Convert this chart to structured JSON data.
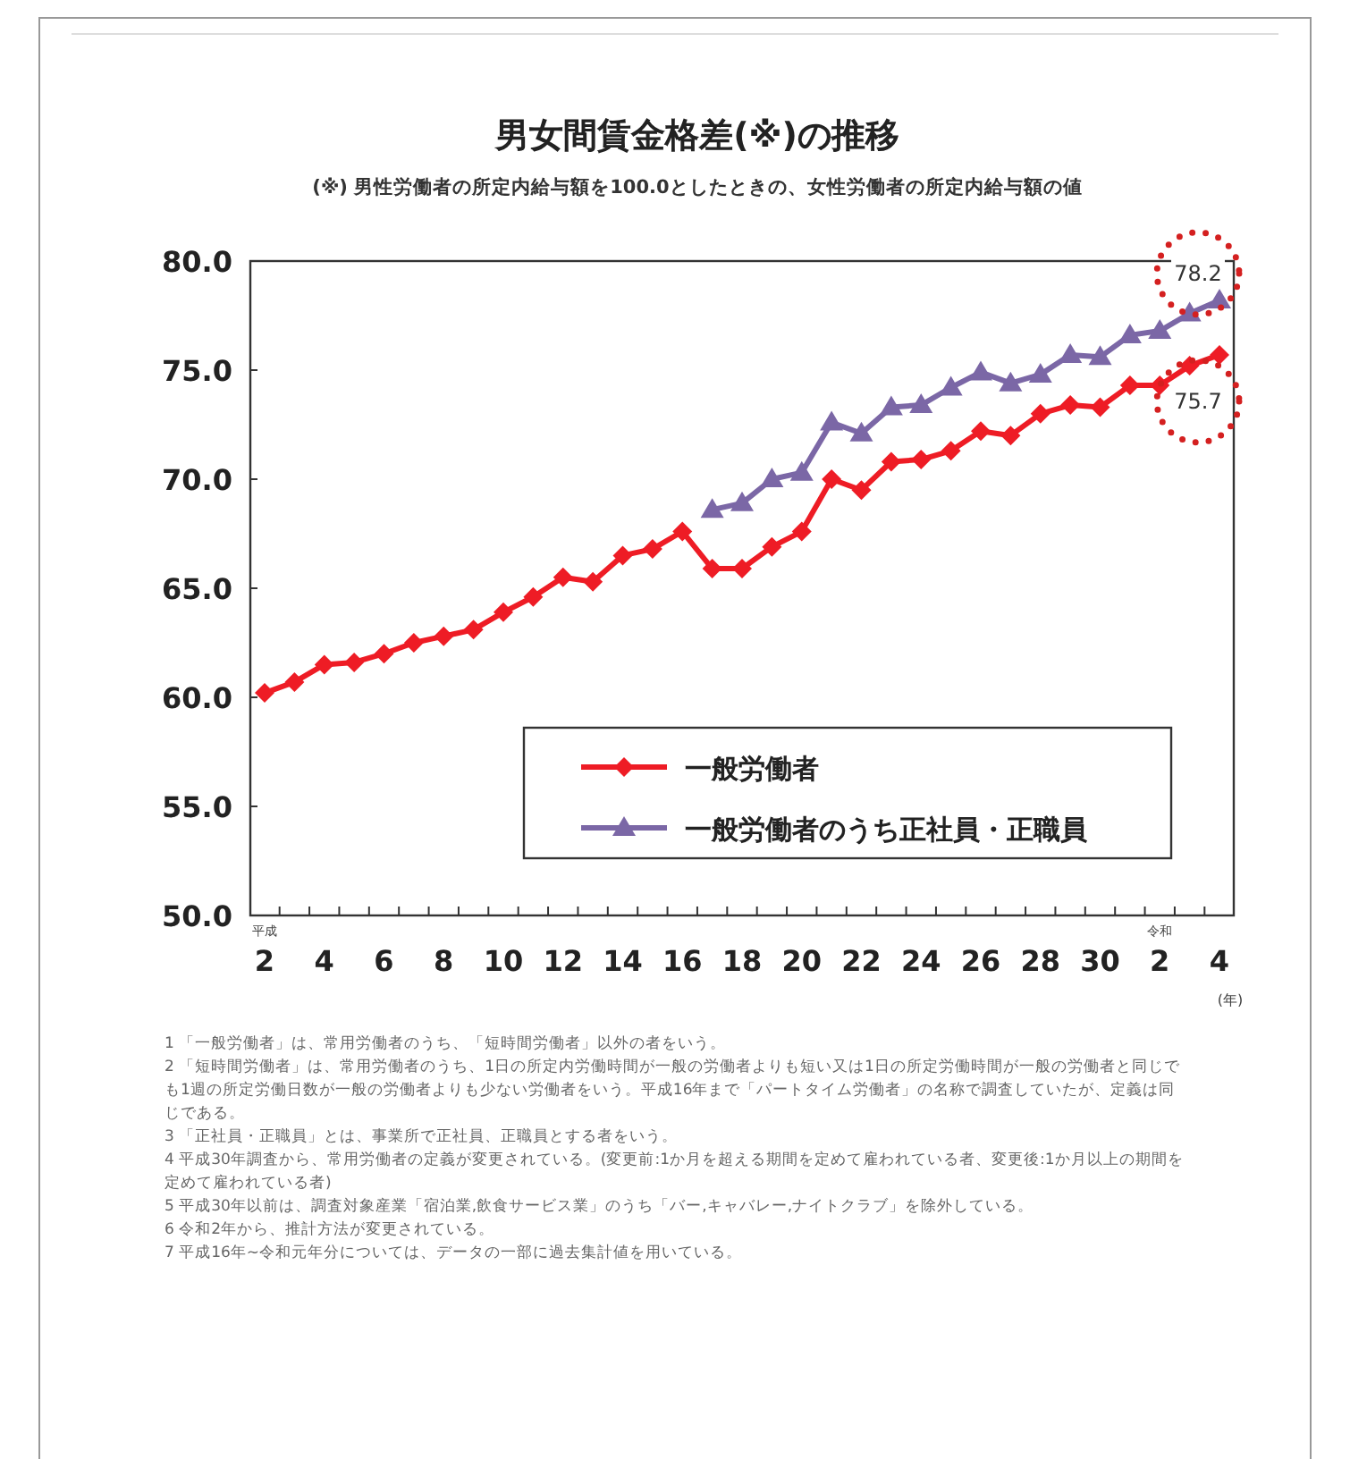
{
  "chart_data": {
    "type": "line",
    "title": "男女間賃金格差(※)の推移",
    "subtitle": "(※) 男性労働者の所定内給与額を100.0としたときの、女性労働者の所定内給与額の値",
    "xlabel": "(年)",
    "categories": [
      "平成\n2",
      null,
      "4",
      null,
      "6",
      null,
      "8",
      null,
      "10",
      null,
      "12",
      null,
      "14",
      null,
      "16",
      null,
      "18",
      null,
      "20",
      null,
      "22",
      null,
      "24",
      null,
      "26",
      null,
      "28",
      null,
      "30",
      null,
      "令和\n2",
      null,
      "4"
    ],
    "series": [
      {
        "name": "一般労働者",
        "color": "#ee1c25",
        "marker": "diamond",
        "values": [
          60.2,
          60.7,
          61.5,
          61.6,
          62.0,
          62.5,
          62.8,
          63.1,
          63.9,
          64.6,
          65.5,
          65.3,
          66.5,
          66.8,
          67.6,
          65.9,
          65.9,
          66.9,
          67.6,
          70.0,
          69.5,
          70.8,
          70.9,
          71.3,
          72.2,
          72.0,
          73.0,
          73.4,
          73.3,
          74.3,
          74.3,
          75.2,
          75.7
        ]
      },
      {
        "name": "一般労働者のうち正社員・正職員",
        "color": "#7b67a6",
        "marker": "triangle",
        "values": [
          null,
          null,
          null,
          null,
          null,
          null,
          null,
          null,
          null,
          null,
          null,
          null,
          null,
          null,
          null,
          68.6,
          68.9,
          70.0,
          70.3,
          72.6,
          72.1,
          73.3,
          73.4,
          74.2,
          74.9,
          74.4,
          74.8,
          75.7,
          75.6,
          76.6,
          76.8,
          77.6,
          78.2
        ]
      }
    ],
    "ylim": [
      50,
      80
    ],
    "yticks": [
      {
        "value": 50,
        "label": "50.0"
      },
      {
        "value": 55,
        "label": "55.0"
      },
      {
        "value": 60,
        "label": "60.0"
      },
      {
        "value": 65,
        "label": "65.0"
      },
      {
        "value": 70,
        "label": "70.0"
      },
      {
        "value": 75,
        "label": "75.0"
      },
      {
        "value": 80,
        "label": "80.0"
      }
    ],
    "legend": "bottom right",
    "annotations": [
      {
        "text": "78.2",
        "y": 78.2
      },
      {
        "text": "75.7",
        "y": 75.7
      },
      "1 「一般労働者」は、常用労働者のうち、「短時間労働者」以外の者をいう。",
      "2 「短時間労働者」は、常用労働者のうち、1日の所定内労働時間が一般の労働者よりも短い又は1日の所定労働時間が一般の労働者と同じでも1週の所定労働日数が一般の労働者よりも少ない労働者をいう。平成16年まで「パートタイム労働者」の名称で調査していたが、定義は同じである。",
      "3 「正社員・正職員」とは、事業所で正社員、正職員とする者をいう。",
      "4 平成30年調査から、常用労働者の定義が変更されている。(変更前:1か月を超える期間を定めて雇われている者、変更後:1か月以上の期間を定めて雇われている者)",
      "5 平成30年以前は、調査対象産業「宿泊業,飲食サービス業」のうち「バー,キャバレー,ナイトクラブ」を除外している。",
      "6 令和2年から、推計方法が変更されている。",
      "7 平成16年~令和元年分については、データの一部に過去集計値を用いている。"
    ]
  }
}
